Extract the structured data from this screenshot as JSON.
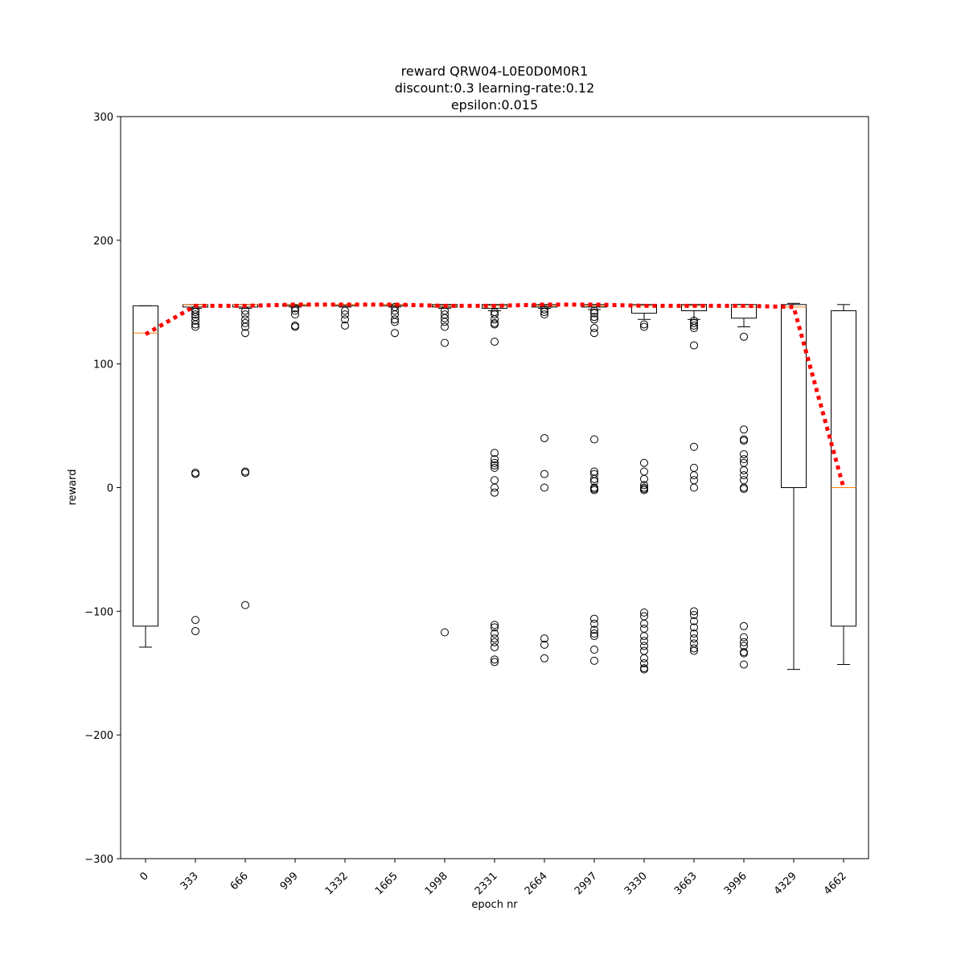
{
  "chart_data": {
    "type": "box",
    "title": [
      "reward QRW04-L0E0D0M0R1",
      "discount:0.3 learning-rate:0.12",
      "epsilon:0.015"
    ],
    "x_label": "epoch nr",
    "y_label": "reward",
    "categories": [
      "0",
      "333",
      "666",
      "999",
      "1332",
      "1665",
      "1998",
      "2331",
      "2664",
      "2997",
      "3330",
      "3663",
      "3996",
      "4329",
      "4662"
    ],
    "boxes": [
      {
        "whisker_low": -129,
        "q1": -112,
        "median": 125,
        "q3": 147,
        "whisker_high": 147,
        "outliers": []
      },
      {
        "whisker_low": 145,
        "q1": 146,
        "median": 148,
        "q3": 148,
        "whisker_high": 148,
        "outliers": [
          12,
          11,
          -107,
          -116,
          130,
          132,
          135,
          138,
          140,
          142,
          144
        ]
      },
      {
        "whisker_low": 145,
        "q1": 146,
        "median": 148,
        "q3": 148,
        "whisker_high": 148,
        "outliers": [
          13,
          12,
          -95,
          125,
          130,
          133,
          136,
          140,
          143
        ]
      },
      {
        "whisker_low": 146,
        "q1": 147,
        "median": 148,
        "q3": 148,
        "whisker_high": 148,
        "outliers": [
          130,
          131,
          140,
          143,
          145
        ]
      },
      {
        "whisker_low": 146,
        "q1": 147,
        "median": 148,
        "q3": 148,
        "whisker_high": 148,
        "outliers": [
          131,
          136,
          140,
          143
        ]
      },
      {
        "whisker_low": 146,
        "q1": 147,
        "median": 148,
        "q3": 148,
        "whisker_high": 148,
        "outliers": [
          125,
          134,
          136,
          140,
          143,
          146
        ]
      },
      {
        "whisker_low": 145,
        "q1": 146,
        "median": 147,
        "q3": 148,
        "whisker_high": 148,
        "outliers": [
          117,
          -117,
          130,
          134,
          137,
          140,
          143
        ]
      },
      {
        "whisker_low": 143,
        "q1": 145,
        "median": 147,
        "q3": 148,
        "whisker_high": 148,
        "outliers": [
          118,
          132,
          133,
          136,
          140,
          142,
          28,
          23,
          20,
          18,
          16,
          6,
          0,
          -4,
          -111,
          -113,
          -118,
          -122,
          -125,
          -129,
          -139,
          -141
        ]
      },
      {
        "whisker_low": 145,
        "q1": 146,
        "median": 147,
        "q3": 148,
        "whisker_high": 148,
        "outliers": [
          140,
          142,
          144,
          40,
          11,
          0,
          -122,
          -127,
          -138
        ]
      },
      {
        "whisker_low": 144,
        "q1": 146,
        "median": 147,
        "q3": 148,
        "whisker_high": 148,
        "outliers": [
          125,
          129,
          136,
          138,
          141,
          143,
          39,
          13,
          11,
          7,
          5,
          0,
          -1,
          -2,
          -106,
          -110,
          -115,
          -118,
          -120,
          -131,
          -140
        ]
      },
      {
        "whisker_low": 136,
        "q1": 141,
        "median": 147,
        "q3": 148,
        "whisker_high": 148,
        "outliers": [
          130,
          132,
          20,
          13,
          7,
          2,
          0,
          -1,
          -2,
          -101,
          -104,
          -110,
          -114,
          -120,
          -124,
          -128,
          -132,
          -138,
          -142,
          -146,
          -147
        ]
      },
      {
        "whisker_low": 136,
        "q1": 143,
        "median": 147,
        "q3": 148,
        "whisker_high": 148,
        "outliers": [
          115,
          129,
          131,
          133,
          135,
          33,
          16,
          10,
          6,
          0,
          -100,
          -103,
          -108,
          -113,
          -118,
          -122,
          -126,
          -130,
          -132
        ]
      },
      {
        "whisker_low": 130,
        "q1": 137,
        "median": 146,
        "q3": 148,
        "whisker_high": 148,
        "outliers": [
          122,
          47,
          39,
          38,
          27,
          23,
          20,
          14,
          10,
          6,
          0,
          -1,
          -112,
          -121,
          -125,
          -128,
          -133,
          -134,
          -143
        ]
      },
      {
        "whisker_low": -147,
        "q1": 0,
        "median": 146,
        "q3": 148,
        "whisker_high": 149,
        "outliers": []
      },
      {
        "whisker_low": -143,
        "q1": -112,
        "median": 0,
        "q3": 143,
        "whisker_high": 148,
        "outliers": []
      }
    ],
    "means": [
      124,
      147,
      147,
      148,
      148,
      148,
      147,
      147,
      148,
      148,
      147,
      147,
      147,
      146,
      0
    ],
    "box_color": "#000000",
    "median_color": "#ff7f0e",
    "mean_color": "#ff0000",
    "ylim": [
      -300,
      300
    ],
    "yticks": [
      {
        "value": -300,
        "label": "−300"
      },
      {
        "value": -200,
        "label": "−200"
      },
      {
        "value": -100,
        "label": "−100"
      },
      0,
      100,
      200,
      300
    ]
  }
}
